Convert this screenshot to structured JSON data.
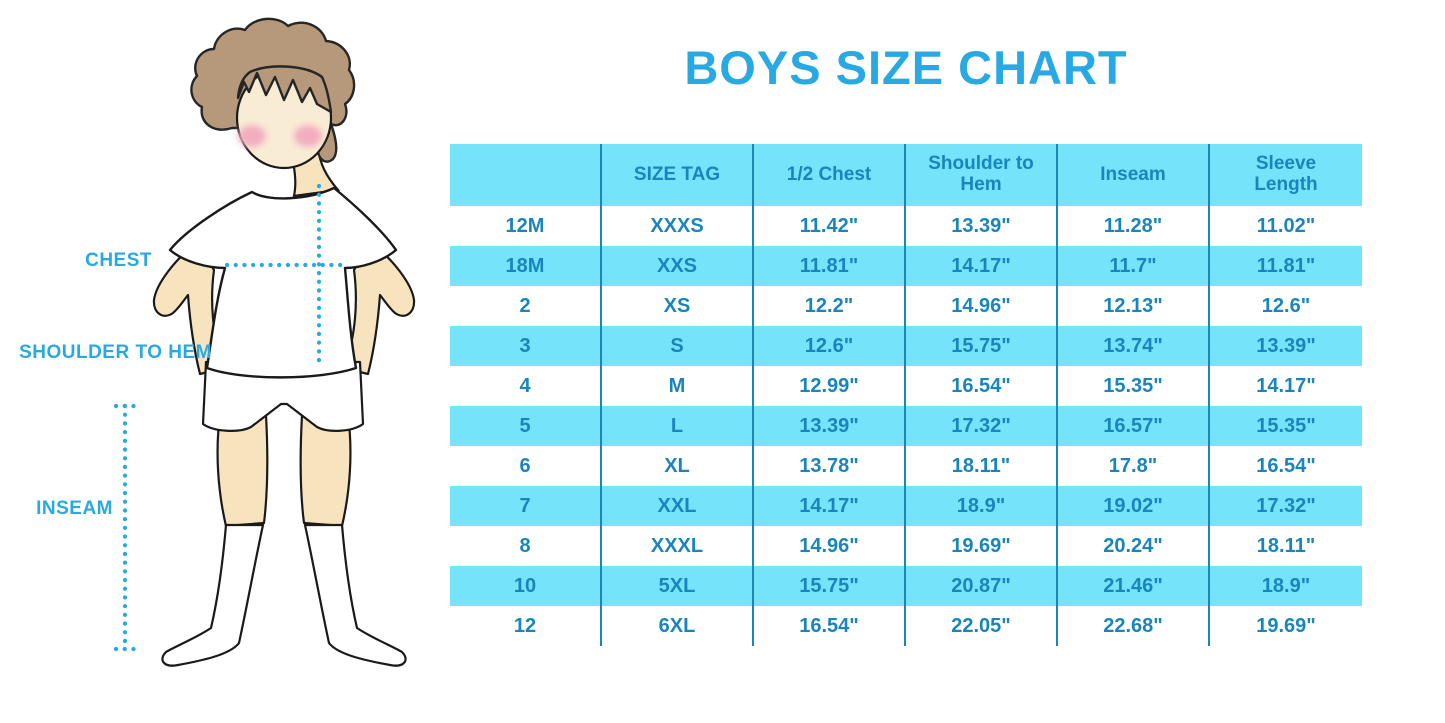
{
  "title": "BOYS SIZE CHART",
  "colors": {
    "accent": "#29A9E1",
    "table_header_bg": "#75E3FA",
    "table_alt_row_bg": "#75E3FA",
    "table_text": "#1985BD",
    "column_divider": "#1985BD"
  },
  "figure": {
    "chest_label": "CHEST",
    "shoulder_to_hem_label": "SHOULDER TO HEM",
    "inseam_label": "INSEAM"
  },
  "chart_data": {
    "type": "table",
    "title": "BOYS SIZE CHART",
    "columns": [
      "",
      "SIZE TAG",
      "1/2 Chest",
      "Shoulder to Hem",
      "Inseam",
      "Sleeve Length"
    ],
    "rows": [
      [
        "12M",
        "XXXS",
        "11.42\"",
        "13.39\"",
        "11.28\"",
        "11.02\""
      ],
      [
        "18M",
        "XXS",
        "11.81\"",
        "14.17\"",
        "11.7\"",
        "11.81\""
      ],
      [
        "2",
        "XS",
        "12.2\"",
        "14.96\"",
        "12.13\"",
        "12.6\""
      ],
      [
        "3",
        "S",
        "12.6\"",
        "15.75\"",
        "13.74\"",
        "13.39\""
      ],
      [
        "4",
        "M",
        "12.99\"",
        "16.54\"",
        "15.35\"",
        "14.17\""
      ],
      [
        "5",
        "L",
        "13.39\"",
        "17.32\"",
        "16.57\"",
        "15.35\""
      ],
      [
        "6",
        "XL",
        "13.78\"",
        "18.11\"",
        "17.8\"",
        "16.54\""
      ],
      [
        "7",
        "XXL",
        "14.17\"",
        "18.9\"",
        "19.02\"",
        "17.32\""
      ],
      [
        "8",
        "XXXL",
        "14.96\"",
        "19.69\"",
        "20.24\"",
        "18.11\""
      ],
      [
        "10",
        "5XL",
        "15.75\"",
        "20.87\"",
        "21.46\"",
        "18.9\""
      ],
      [
        "12",
        "6XL",
        "16.54\"",
        "22.05\"",
        "22.68\"",
        "19.69\""
      ]
    ],
    "units": "inches",
    "stripe_pattern": "alternating white / cyan rows, cyan header"
  }
}
